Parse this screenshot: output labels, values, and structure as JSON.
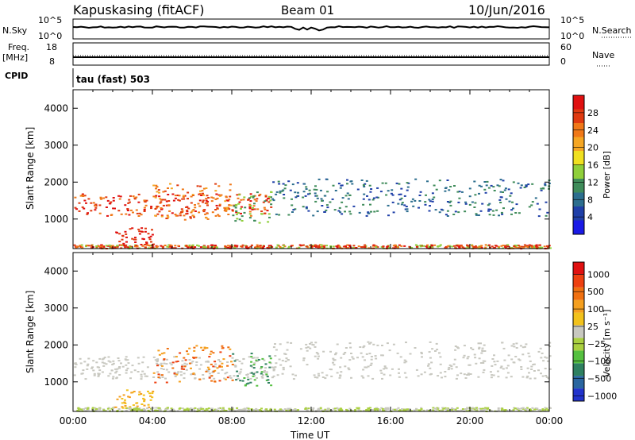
{
  "header": {
    "station": "Kapuskasing (fitACF)",
    "beam": "Beam 01",
    "date": "10/Jun/2016"
  },
  "strip_panels": {
    "nsky_label": "N.Sky",
    "nsky_ticks": [
      "10^5",
      "10^0"
    ],
    "nsearch_label": "N.Search",
    "nsearch_ticks": [
      "10^5",
      "10^0"
    ],
    "freq_label": "Freq.",
    "freq_unit": "[MHz]",
    "freq_ticks": [
      "18",
      "8"
    ],
    "nave_label": "Nave",
    "nave_ticks": [
      "60",
      "0"
    ],
    "cpid_label": "CPID",
    "cpid_value": "tau (fast) 503"
  },
  "colors": {
    "power_scale": [
      "#1a1ae6",
      "#1f3fa8",
      "#2c6e8e",
      "#3f8c5a",
      "#8fcf3a",
      "#f0e020",
      "#f5a623",
      "#f07818",
      "#e03a10",
      "#e01010"
    ],
    "velocity_scale": [
      "#2233cc",
      "#2a66a0",
      "#2e8060",
      "#55c040",
      "#aad040",
      "#c8c8c0",
      "#f2c21c",
      "#f5a020",
      "#f07010",
      "#ee4010",
      "#e01010"
    ]
  },
  "chart_data": [
    {
      "type": "heatmap",
      "name": "power",
      "ylabel": "Slant Range [km]",
      "xlabel": "Time UT",
      "x_ticks": [
        "00:00",
        "04:00",
        "08:00",
        "12:00",
        "16:00",
        "20:00",
        "00:00"
      ],
      "y_ticks": [
        "1000",
        "2000",
        "3000",
        "4000"
      ],
      "ylim": [
        200,
        4500
      ],
      "colorbar_label": "Power [dB]",
      "colorbar_ticks": [
        "4",
        "8",
        "12",
        "16",
        "20",
        "24",
        "28"
      ]
    },
    {
      "type": "heatmap",
      "name": "velocity",
      "ylabel": "Slant Range [km]",
      "xlabel": "Time UT",
      "x_ticks": [
        "00:00",
        "04:00",
        "08:00",
        "12:00",
        "16:00",
        "20:00",
        "00:00"
      ],
      "y_ticks": [
        "1000",
        "2000",
        "3000",
        "4000"
      ],
      "ylim": [
        200,
        4500
      ],
      "colorbar_label": "Velocity [m s⁻¹]",
      "colorbar_ticks": [
        "1000",
        "500",
        "100",
        "25",
        "−25",
        "−100",
        "−500",
        "−1000"
      ]
    }
  ]
}
